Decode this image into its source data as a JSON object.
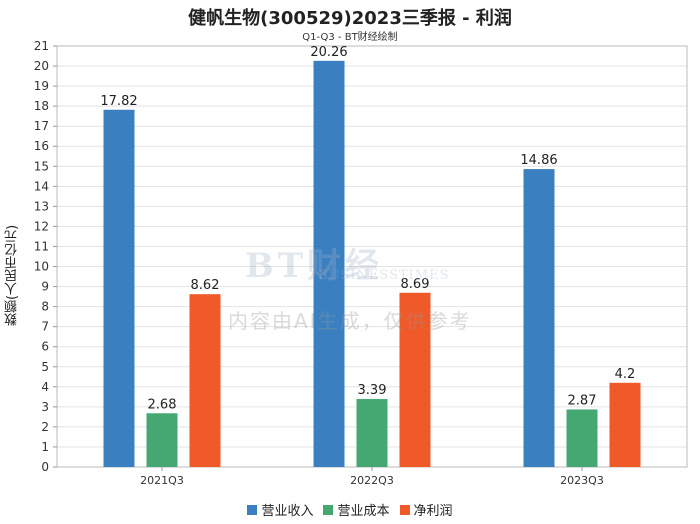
{
  "title": "健帆生物(300529)2023三季报 - 利润",
  "subtitle": "Q1-Q3 - BT财经绘制",
  "watermark": {
    "logo": "BT财经",
    "logo_sub": "BUSINESSTIMES",
    "text": "内容由AI生成，仅供参考"
  },
  "colors": {
    "revenue": "#3a80c1",
    "cost": "#45a872",
    "profit": "#f05a28"
  },
  "chart_data": {
    "type": "bar",
    "title": "健帆生物(300529)2023三季报 - 利润",
    "subtitle": "Q1-Q3 - BT财经绘制",
    "xlabel": "",
    "ylabel": "数额(人民币亿元)",
    "categories": [
      "2021Q3",
      "2022Q3",
      "2023Q3"
    ],
    "series": [
      {
        "name": "营业收入",
        "values": [
          17.82,
          20.26,
          14.86
        ]
      },
      {
        "name": "营业成本",
        "values": [
          2.68,
          3.39,
          2.87
        ]
      },
      {
        "name": "净利润",
        "values": [
          8.62,
          8.69,
          4.2
        ]
      }
    ],
    "ylim": [
      0,
      21
    ],
    "yticks": [
      0,
      1,
      2,
      3,
      4,
      5,
      6,
      7,
      8,
      9,
      10,
      11,
      12,
      13,
      14,
      15,
      16,
      17,
      18,
      19,
      20,
      21
    ],
    "grid": true,
    "legend": "bottom"
  }
}
